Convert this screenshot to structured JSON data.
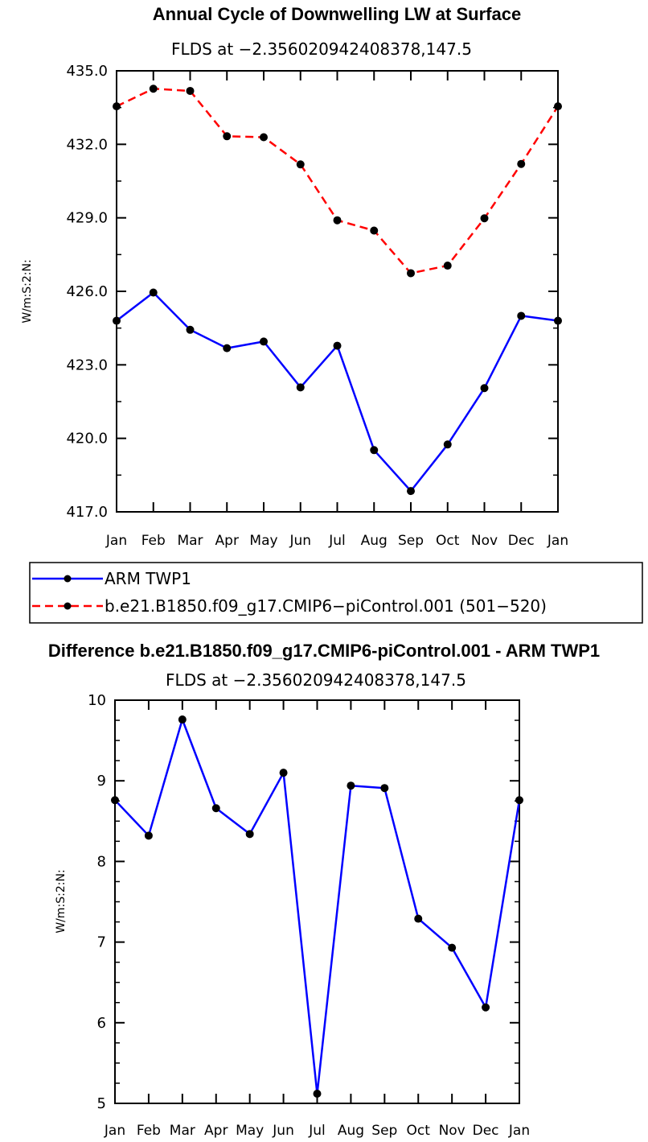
{
  "chart_data": [
    {
      "type": "line",
      "title": "Annual Cycle of Downwelling LW at Surface",
      "subtitle": "FLDS at −2.356020942408378,147.5",
      "ylabel": "W/m:S:2:N:",
      "xlabel": "",
      "categories": [
        "Jan",
        "Feb",
        "Mar",
        "Apr",
        "May",
        "Jun",
        "Jul",
        "Aug",
        "Sep",
        "Oct",
        "Nov",
        "Dec",
        "Jan"
      ],
      "ylim": [
        417.0,
        435.0
      ],
      "yticks": [
        "417.0",
        "420.0",
        "423.0",
        "426.0",
        "429.0",
        "432.0",
        "435.0"
      ],
      "series": [
        {
          "name": "ARM TWP1",
          "color": "#0000ff",
          "style": "solid",
          "values": [
            424.8,
            425.95,
            424.43,
            423.68,
            423.95,
            422.08,
            423.78,
            419.52,
            417.85,
            419.75,
            422.05,
            425.0,
            424.8
          ]
        },
        {
          "name": "b.e21.B1850.f09_g17.CMIP6−piControl.001 (501−520)",
          "color": "#ff0000",
          "style": "dashed",
          "values": [
            433.55,
            434.27,
            434.18,
            432.33,
            432.29,
            431.18,
            428.9,
            428.48,
            426.74,
            427.05,
            428.98,
            431.2,
            433.55
          ]
        }
      ],
      "legend": "below"
    },
    {
      "type": "line",
      "title": "Difference b.e21.B1850.f09_g17.CMIP6-piControl.001 - ARM TWP1",
      "subtitle": "FLDS at −2.356020942408378,147.5",
      "ylabel": "W/m:S:2:N:",
      "xlabel": "",
      "categories": [
        "Jan",
        "Feb",
        "Mar",
        "Apr",
        "May",
        "Jun",
        "Jul",
        "Aug",
        "Sep",
        "Oct",
        "Nov",
        "Dec",
        "Jan"
      ],
      "ylim": [
        5,
        10
      ],
      "yticks": [
        "5",
        "6",
        "7",
        "8",
        "9",
        "10"
      ],
      "series": [
        {
          "name": "Difference",
          "color": "#0000ff",
          "style": "solid",
          "values": [
            8.76,
            8.32,
            9.76,
            8.66,
            8.34,
            9.1,
            5.12,
            8.94,
            8.91,
            7.29,
            6.93,
            6.19,
            8.76
          ]
        }
      ]
    }
  ]
}
